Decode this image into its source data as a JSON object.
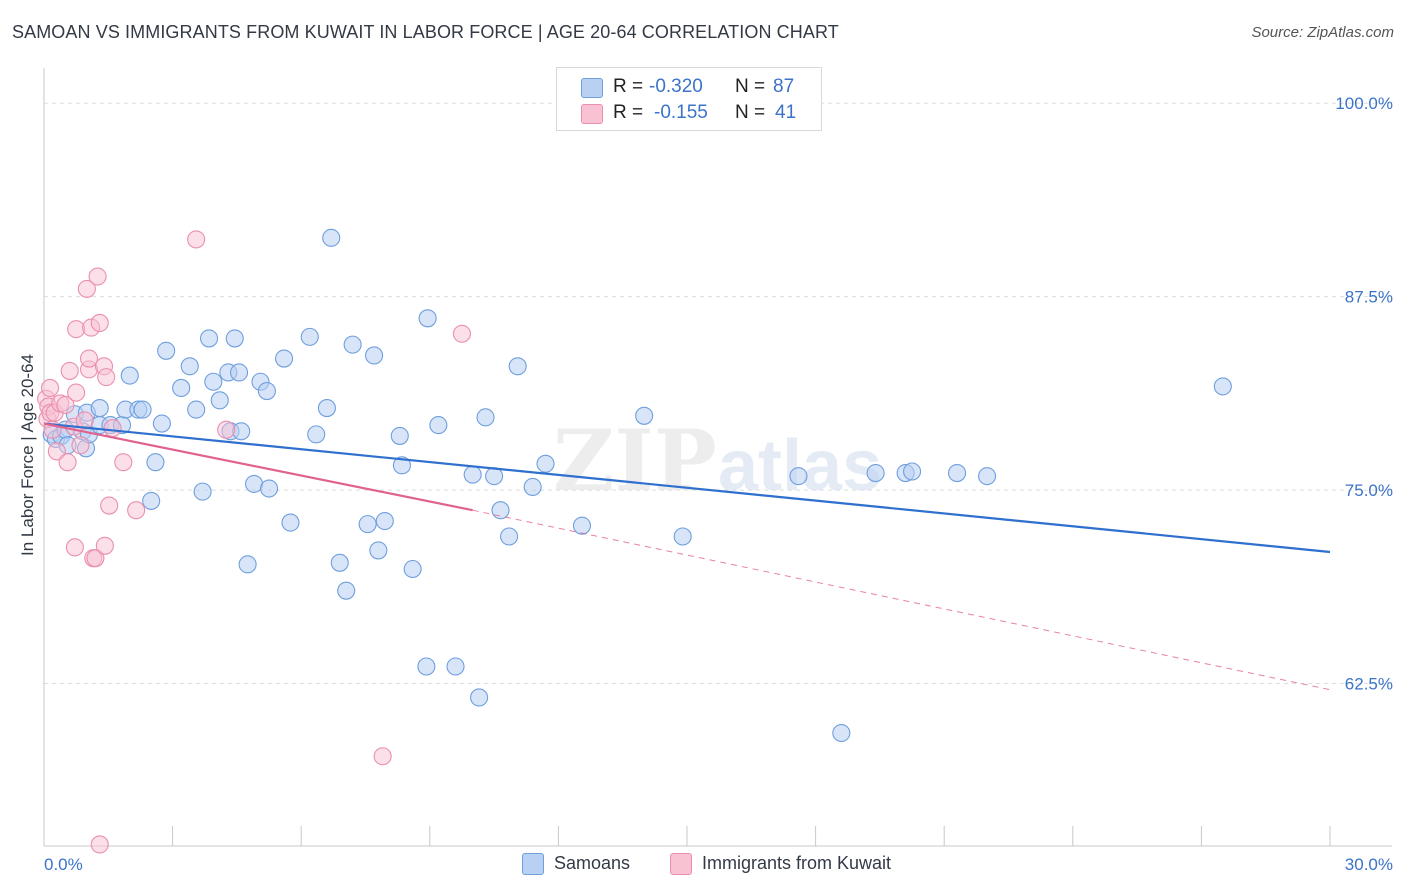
{
  "header": {
    "title": "SAMOAN VS IMMIGRANTS FROM KUWAIT IN LABOR FORCE | AGE 20-64 CORRELATION CHART",
    "source": "Source: ZipAtlas.com"
  },
  "colors": {
    "samoans_fill": "#b8d0f2",
    "samoans_stroke": "#6f9fdd",
    "samoans_line": "#2e6fcf",
    "kuwait_fill": "#f8c2d3",
    "kuwait_stroke": "#ea8fae",
    "kuwait_line": "#e0638f",
    "axis_text": "#3b73c8",
    "grid": "#dddddd"
  },
  "legend": {
    "samoans": {
      "r_label": "R =",
      "r_value": "-0.320",
      "n_label": "N =",
      "n_value": "87"
    },
    "kuwait": {
      "r_label": "R =",
      "r_value": "-0.155",
      "n_label": "N =",
      "n_value": "41"
    }
  },
  "bottom_legend": {
    "samoans": "Samoans",
    "kuwait": "Immigrants from Kuwait"
  },
  "watermark": {
    "zip": "ZIP",
    "atlas": "atlas"
  },
  "chart_data": {
    "type": "scatter",
    "title": "SAMOAN VS IMMIGRANTS FROM KUWAIT IN LABOR FORCE | AGE 20-64 CORRELATION CHART",
    "xlabel": "",
    "ylabel": "In Labor Force | Age 20-64",
    "xlim": [
      0,
      30
    ],
    "ylim": [
      52,
      101.5
    ],
    "x_tick_labels": [
      "0.0%",
      "30.0%"
    ],
    "y_ticks": [
      62.5,
      75.0,
      87.5,
      100.0
    ],
    "y_tick_labels": [
      "62.5%",
      "75.0%",
      "87.5%",
      "100.0%"
    ],
    "grid": true,
    "legend_position": "top-center",
    "series": [
      {
        "name": "Samoans",
        "trend": {
          "x": [
            0.0,
            30.0
          ],
          "y": [
            79.3,
            71.0
          ]
        },
        "points": [
          [
            0.18,
            78.6
          ],
          [
            0.28,
            78.3
          ],
          [
            0.4,
            78.5
          ],
          [
            0.5,
            78.9
          ],
          [
            0.55,
            77.9
          ],
          [
            0.72,
            79.9
          ],
          [
            0.9,
            78.8
          ],
          [
            0.98,
            77.7
          ],
          [
            1.0,
            80.0
          ],
          [
            1.05,
            78.6
          ],
          [
            1.3,
            79.2
          ],
          [
            1.3,
            80.3
          ],
          [
            1.55,
            79.2
          ],
          [
            1.82,
            79.2
          ],
          [
            1.9,
            80.2
          ],
          [
            2.0,
            82.4
          ],
          [
            2.2,
            80.2
          ],
          [
            2.3,
            80.2
          ],
          [
            2.5,
            74.3
          ],
          [
            2.6,
            76.8
          ],
          [
            2.75,
            79.3
          ],
          [
            2.85,
            84.0
          ],
          [
            3.2,
            81.6
          ],
          [
            3.4,
            83.0
          ],
          [
            3.55,
            80.2
          ],
          [
            3.7,
            74.9
          ],
          [
            3.85,
            84.8
          ],
          [
            3.95,
            82.0
          ],
          [
            4.1,
            80.8
          ],
          [
            4.3,
            82.6
          ],
          [
            4.35,
            78.8
          ],
          [
            4.45,
            84.8
          ],
          [
            4.55,
            82.6
          ],
          [
            4.6,
            78.8
          ],
          [
            4.75,
            70.2
          ],
          [
            4.9,
            75.4
          ],
          [
            5.05,
            82.0
          ],
          [
            5.2,
            81.4
          ],
          [
            5.25,
            75.1
          ],
          [
            5.6,
            83.5
          ],
          [
            5.75,
            72.9
          ],
          [
            6.2,
            84.9
          ],
          [
            6.35,
            78.6
          ],
          [
            6.6,
            80.3
          ],
          [
            6.7,
            91.3
          ],
          [
            6.9,
            70.3
          ],
          [
            7.05,
            68.5
          ],
          [
            7.2,
            84.4
          ],
          [
            7.55,
            72.8
          ],
          [
            7.7,
            83.7
          ],
          [
            7.8,
            71.1
          ],
          [
            7.95,
            73.0
          ],
          [
            8.3,
            78.5
          ],
          [
            8.35,
            76.6
          ],
          [
            8.6,
            69.9
          ],
          [
            8.92,
            63.6
          ],
          [
            8.95,
            86.1
          ],
          [
            9.2,
            79.2
          ],
          [
            9.6,
            63.6
          ],
          [
            10.0,
            76.0
          ],
          [
            10.15,
            61.6
          ],
          [
            10.3,
            79.7
          ],
          [
            10.5,
            75.9
          ],
          [
            10.65,
            73.7
          ],
          [
            10.85,
            72.0
          ],
          [
            11.05,
            83.0
          ],
          [
            11.4,
            75.2
          ],
          [
            11.7,
            76.7
          ],
          [
            12.55,
            72.7
          ],
          [
            14.0,
            79.8
          ],
          [
            14.9,
            72.0
          ],
          [
            17.6,
            75.9
          ],
          [
            18.6,
            59.3
          ],
          [
            19.4,
            76.1
          ],
          [
            20.1,
            76.1
          ],
          [
            20.25,
            76.2
          ],
          [
            21.3,
            76.1
          ],
          [
            22.0,
            75.9
          ],
          [
            27.5,
            81.7
          ]
        ]
      },
      {
        "name": "Immigrants from Kuwait",
        "trend_solid": {
          "x": [
            0.0,
            10.0
          ],
          "y": [
            79.3,
            73.7
          ]
        },
        "trend_dashed": {
          "x": [
            10.0,
            30.0
          ],
          "y": [
            73.7,
            62.1
          ]
        },
        "points": [
          [
            0.05,
            80.9
          ],
          [
            0.08,
            79.6
          ],
          [
            0.1,
            80.4
          ],
          [
            0.14,
            81.6
          ],
          [
            0.15,
            80.0
          ],
          [
            0.2,
            78.9
          ],
          [
            0.25,
            80.0
          ],
          [
            0.3,
            77.5
          ],
          [
            0.38,
            80.6
          ],
          [
            0.5,
            80.5
          ],
          [
            0.55,
            76.8
          ],
          [
            0.6,
            82.7
          ],
          [
            0.7,
            79.1
          ],
          [
            0.72,
            71.3
          ],
          [
            0.75,
            81.3
          ],
          [
            0.75,
            85.4
          ],
          [
            0.85,
            77.9
          ],
          [
            0.95,
            79.5
          ],
          [
            1.0,
            88.0
          ],
          [
            1.05,
            82.8
          ],
          [
            1.05,
            83.5
          ],
          [
            1.1,
            85.5
          ],
          [
            1.15,
            70.6
          ],
          [
            1.2,
            70.6
          ],
          [
            1.25,
            88.8
          ],
          [
            1.3,
            85.8
          ],
          [
            1.4,
            83.0
          ],
          [
            1.42,
            71.4
          ],
          [
            1.45,
            82.3
          ],
          [
            1.52,
            74.0
          ],
          [
            1.6,
            79.0
          ],
          [
            1.85,
            76.8
          ],
          [
            2.15,
            73.7
          ],
          [
            3.55,
            91.2
          ],
          [
            4.25,
            78.9
          ],
          [
            7.9,
            57.8
          ],
          [
            9.75,
            85.1
          ],
          [
            1.3,
            52.1
          ]
        ]
      }
    ]
  }
}
